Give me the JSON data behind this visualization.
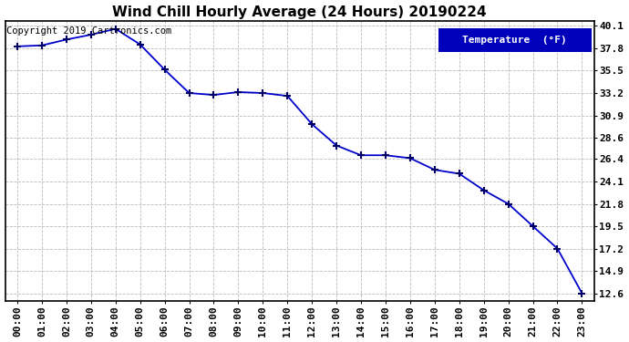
{
  "title": "Wind Chill Hourly Average (24 Hours) 20190224",
  "copyright_text": "Copyright 2019 Cartronics.com",
  "legend_label": "Temperature  (°F)",
  "x_labels": [
    "00:00",
    "01:00",
    "02:00",
    "03:00",
    "04:00",
    "05:00",
    "06:00",
    "07:00",
    "08:00",
    "09:00",
    "10:00",
    "11:00",
    "12:00",
    "13:00",
    "14:00",
    "15:00",
    "16:00",
    "17:00",
    "18:00",
    "19:00",
    "20:00",
    "21:00",
    "22:00",
    "23:00"
  ],
  "y_values": [
    38.0,
    38.1,
    38.7,
    39.2,
    39.8,
    38.2,
    35.6,
    33.2,
    33.0,
    33.3,
    33.2,
    32.9,
    30.0,
    27.8,
    26.8,
    26.8,
    26.5,
    25.3,
    24.9,
    23.2,
    21.8,
    19.5,
    17.2,
    12.6
  ],
  "ylim_min": 12.6,
  "ylim_max": 40.1,
  "yticks": [
    40.1,
    37.8,
    35.5,
    33.2,
    30.9,
    28.6,
    26.4,
    24.1,
    21.8,
    19.5,
    17.2,
    14.9,
    12.6
  ],
  "line_color": "#0000cc",
  "marker_color": "#000066",
  "bg_color": "#ffffff",
  "plot_bg_color": "#ffffff",
  "grid_color": "#bbbbbb",
  "title_color": "#000000",
  "legend_bg": "#0000bb",
  "legend_fg": "#ffffff",
  "title_fontsize": 11,
  "tick_fontsize": 8,
  "copyright_fontsize": 7.5
}
